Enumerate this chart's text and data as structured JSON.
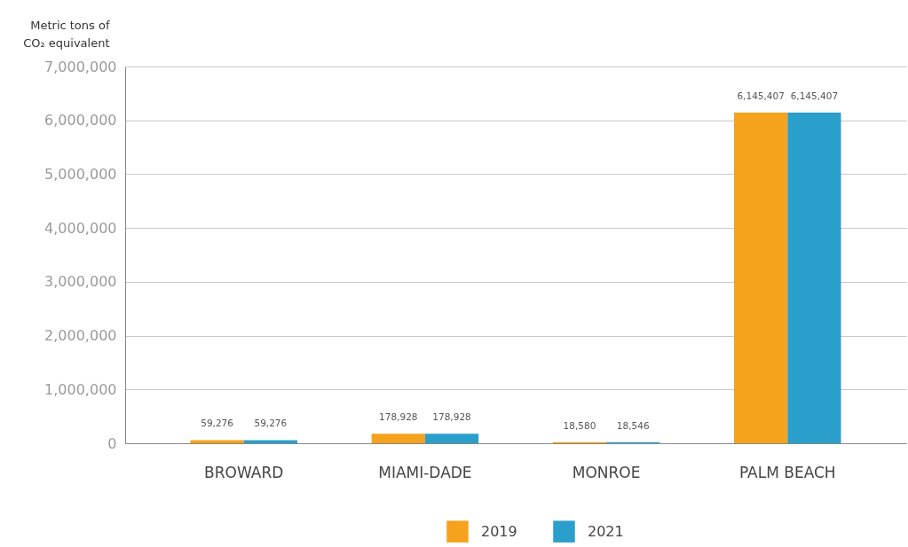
{
  "chart_data": {
    "type": "bar",
    "ylabel": "Metric tons of CO₂ equivalent",
    "categories": [
      "BROWARD",
      "MIAMI-DADE",
      "MONROE",
      "PALM BEACH"
    ],
    "series": [
      {
        "name": "2019",
        "color": "#f5a21c",
        "values": [
          59276,
          178928,
          18580,
          6145407
        ],
        "value_labels": [
          "59,276",
          "178,928",
          "18,580",
          "6,145,407"
        ]
      },
      {
        "name": "2021",
        "color": "#2a9fcb",
        "values": [
          59276,
          178928,
          18546,
          6145407
        ],
        "value_labels": [
          "59,276",
          "178,928",
          "18,546",
          "6,145,407"
        ]
      }
    ],
    "ylim": [
      0,
      7000000
    ],
    "yticks": [
      0,
      {
        "value": 1000000,
        "label": "1,000,000"
      },
      {
        "value": 2000000,
        "label": "2,000,000"
      },
      {
        "value": 3000000,
        "label": "3,000,000"
      },
      {
        "value": 4000000,
        "label": "4,000,000"
      },
      {
        "value": 5000000,
        "label": "5,000,000"
      },
      {
        "value": 6000000,
        "label": "6,000,000"
      },
      {
        "value": 7000000,
        "label": "7,000,000"
      }
    ],
    "grid": "y",
    "legend": "bottom"
  }
}
